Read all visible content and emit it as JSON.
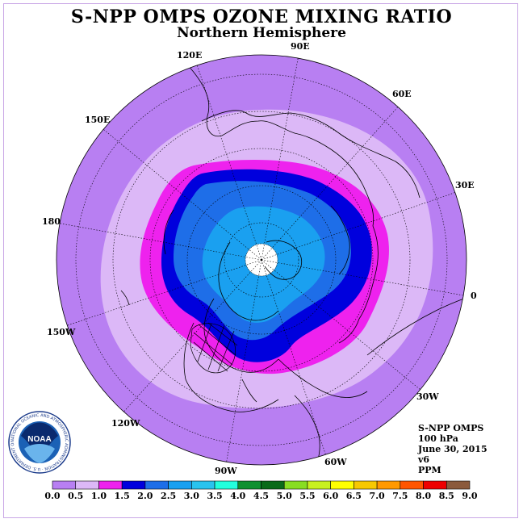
{
  "title": "S-NPP OMPS OZONE MIXING RATIO",
  "subtitle": "Northern Hemisphere",
  "longitude_labels": {
    "e120": "120E",
    "e90": "90E",
    "e60": "60E",
    "e150": "150E",
    "e30": "30E",
    "d180": "180",
    "d0": "0",
    "w150": "150W",
    "w30": "30W",
    "w120": "120W",
    "w60": "60W",
    "w90": "90W"
  },
  "info": {
    "instrument": "S-NPP OMPS",
    "level": "100 hPa",
    "date": "June 30, 2015",
    "version": "v6",
    "units": "PPM"
  },
  "logo": {
    "text": "NOAA",
    "ring_text": "NATIONAL OCEANIC AND ATMOSPHERIC ADMINISTRATION · U.S. DEPARTMENT OF COMMERCE"
  },
  "colorbar": {
    "labels": [
      "0.0",
      "0.5",
      "1.0",
      "1.5",
      "2.0",
      "2.5",
      "3.0",
      "3.5",
      "4.0",
      "4.5",
      "5.0",
      "5.5",
      "6.0",
      "6.5",
      "7.0",
      "7.5",
      "8.0",
      "8.5",
      "9.0"
    ],
    "colors": [
      "#b87ff2",
      "#dcb8f7",
      "#ee22ee",
      "#0000dd",
      "#1e6ee8",
      "#1aa0f0",
      "#2ac3ee",
      "#22ffdd",
      "#0e9030",
      "#0a6a1a",
      "#88dd22",
      "#c8f020",
      "#ffff00",
      "#f7c800",
      "#ff9900",
      "#ff5500",
      "#ee0000",
      "#8b5a3c"
    ]
  },
  "colors": {
    "outer": "#b87ff2",
    "light": "#dcb8f7",
    "magenta": "#ee22ee",
    "dark_blue": "#0000dd",
    "mid_blue": "#1e6ee8",
    "light_blue": "#1aa0f0",
    "pole_cap": "#ffffff"
  }
}
